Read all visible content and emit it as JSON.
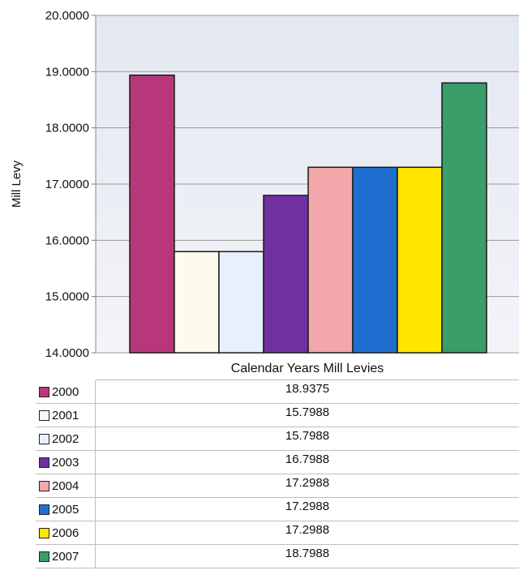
{
  "chart_data": {
    "type": "bar",
    "ylabel": "Mill Levy",
    "xlabel": "Calendar Years Mill Levies",
    "ylim": [
      14,
      20
    ],
    "yticks": [
      "14.0000",
      "15.0000",
      "16.0000",
      "17.0000",
      "18.0000",
      "19.0000",
      "20.0000"
    ],
    "grid": true,
    "legend": "data-table",
    "categories": [
      "2000",
      "2001",
      "2002",
      "2003",
      "2004",
      "2005",
      "2006",
      "2007"
    ],
    "values": [
      18.9375,
      15.7988,
      15.7988,
      16.7988,
      17.2988,
      17.2988,
      17.2988,
      18.7988
    ],
    "value_labels": [
      "18.9375",
      "15.7988",
      "15.7988",
      "16.7988",
      "17.2988",
      "17.2988",
      "17.2988",
      "18.7988"
    ],
    "colors": [
      "#b8377a",
      "#fdfbee",
      "#e8f0fb",
      "#7030a0",
      "#f2a7aa",
      "#1f6fd1",
      "#ffe500",
      "#3a9d6a"
    ],
    "plot_background": "#e9ebf3"
  }
}
